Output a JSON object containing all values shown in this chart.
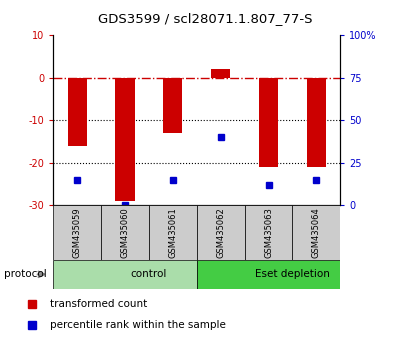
{
  "title": "GDS3599 / scl28071.1.807_77-S",
  "samples": [
    "GSM435059",
    "GSM435060",
    "GSM435061",
    "GSM435062",
    "GSM435063",
    "GSM435064"
  ],
  "red_bars": [
    -16,
    -29,
    -13,
    2,
    -21,
    -21
  ],
  "blue_percentile": [
    15,
    0,
    15,
    40,
    12,
    15
  ],
  "ylim_left": [
    -30,
    10
  ],
  "ylim_right": [
    0,
    100
  ],
  "yticks_left": [
    -30,
    -20,
    -10,
    0,
    10
  ],
  "yticks_right": [
    0,
    25,
    50,
    75,
    100
  ],
  "ytick_labels_right": [
    "0",
    "25",
    "50",
    "75",
    "100%"
  ],
  "groups": [
    {
      "label": "control",
      "start": 0,
      "end": 3,
      "color": "#AADDAA"
    },
    {
      "label": "Eset depletion",
      "start": 3,
      "end": 6,
      "color": "#44CC44"
    }
  ],
  "bar_color": "#CC0000",
  "dot_color": "#0000CC",
  "protocol_label": "protocol"
}
